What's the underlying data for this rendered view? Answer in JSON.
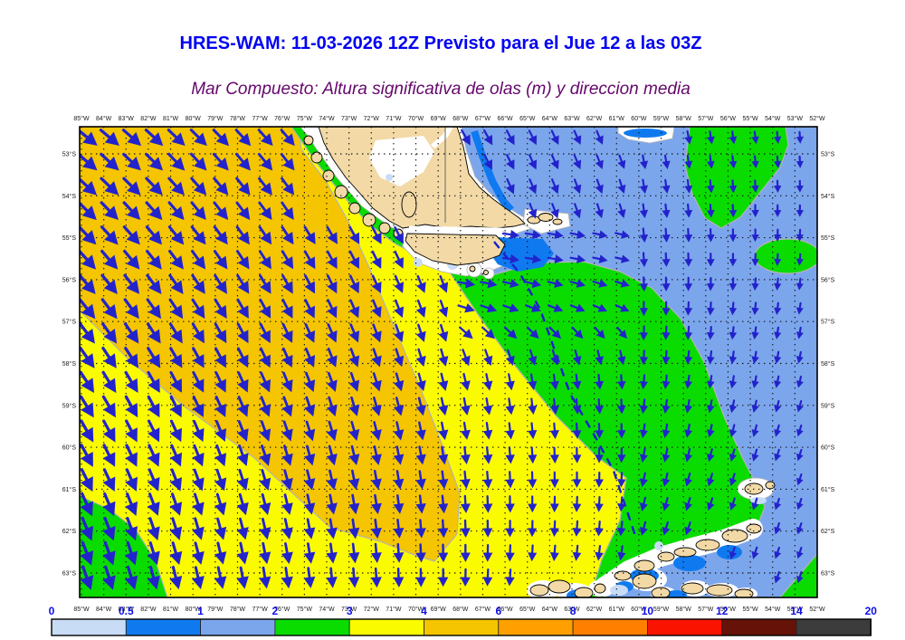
{
  "header": {
    "title": "HRES-WAM: 11-03-2026 12Z Previsto para el Jue 12 a las 03Z",
    "subtitle": "Mar Compuesto: Altura significativa de olas (m) y direccion media",
    "title_color": "#0202F2",
    "subtitle_color": "#65076B"
  },
  "axes": {
    "lon_labels": [
      "85°W",
      "84°W",
      "83°W",
      "82°W",
      "81°W",
      "80°W",
      "79°W",
      "78°W",
      "77°W",
      "76°W",
      "75°W",
      "74°W",
      "73°W",
      "72°W",
      "71°W",
      "70°W",
      "69°W",
      "68°W",
      "67°W",
      "66°W",
      "65°W",
      "64°W",
      "63°W",
      "62°W",
      "61°W",
      "60°W",
      "59°W",
      "58°W",
      "57°W",
      "56°W",
      "55°W",
      "54°W",
      "53°W",
      "52°W"
    ],
    "lat_labels": [
      "53°S",
      "54°S",
      "55°S",
      "56°S",
      "57°S",
      "58°S",
      "59°S",
      "60°S",
      "61°S",
      "62°S",
      "63°S"
    ]
  },
  "colorbar": {
    "values": [
      "0",
      "0.5",
      "1",
      "2",
      "3",
      "4",
      "6",
      "8",
      "10",
      "12",
      "14",
      "20"
    ],
    "colors": [
      "#C9DCF6",
      "#0F7AF0",
      "#7CA6EC",
      "#0ADC00",
      "#FBFB00",
      "#F4C500",
      "#FFA000",
      "#FF7F00",
      "#FA1400",
      "#661208",
      "#3C3C3C"
    ],
    "number_color": "#0D0DE8"
  },
  "style_colors": {
    "land": "#F2D9A6",
    "land_outline": "#000000",
    "arrow": "#2323CC",
    "route_dash": "#1822CC",
    "contour": "#B4B4B4",
    "grid": "#111111",
    "frame": "#000000",
    "coast_halo": "#FFFFFF"
  }
}
